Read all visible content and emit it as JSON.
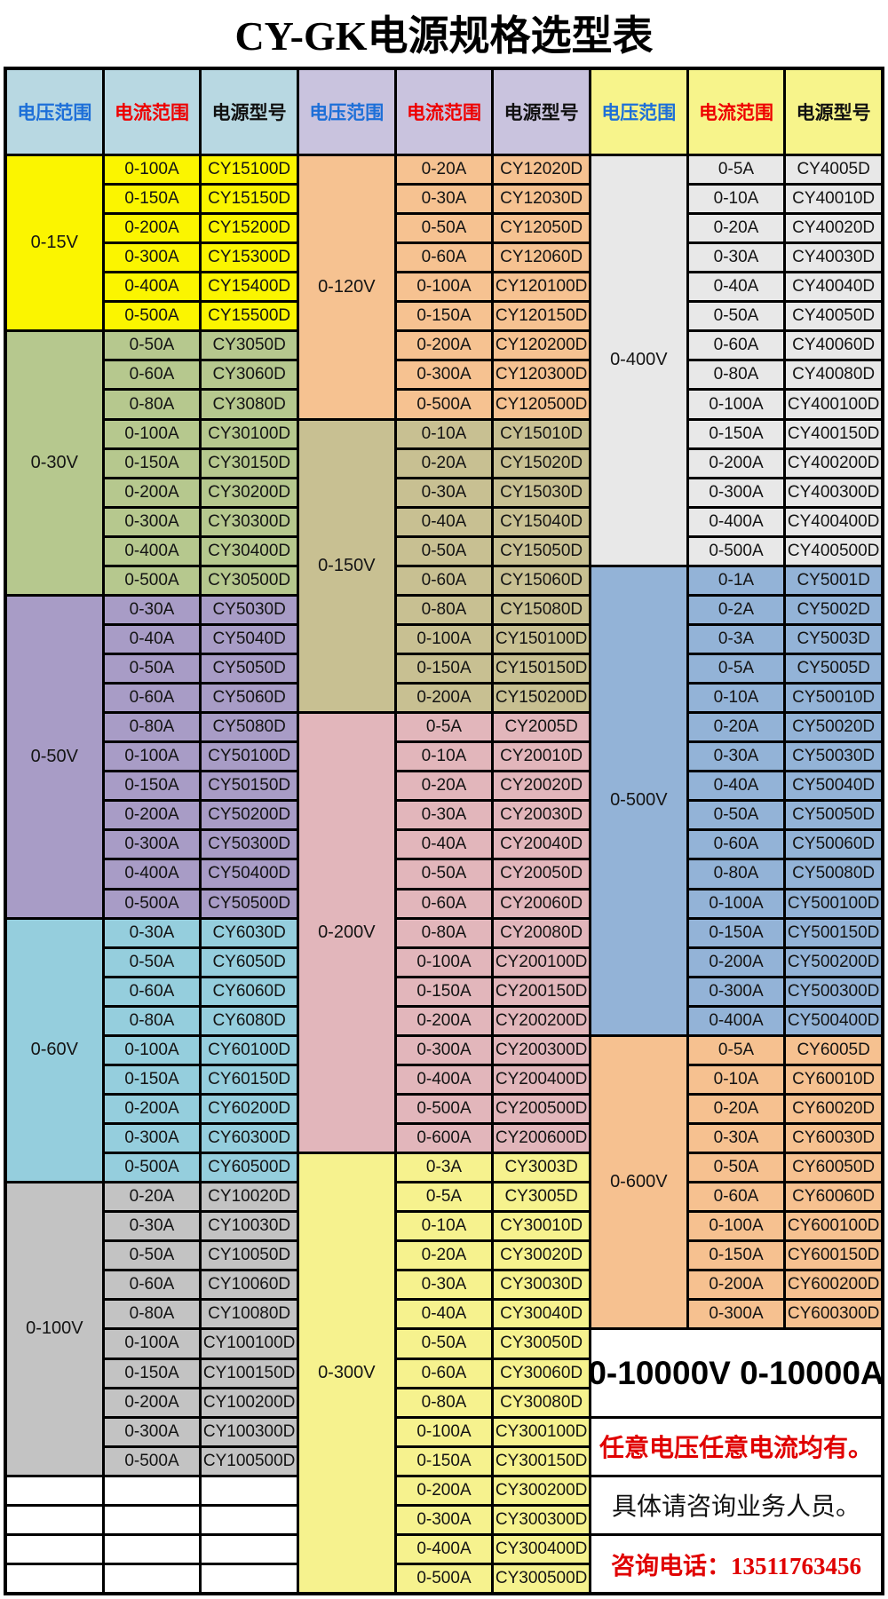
{
  "title": "CY-GK电源规格选型表",
  "columns": {
    "voltage": "电压范围",
    "current": "电流范围",
    "model": "电源型号"
  },
  "header_text_colors": {
    "voltage": "#1d6fd8",
    "current": "#ee0000",
    "model": "#111111"
  },
  "groups": [
    {
      "header_bg": "#b8d8e2",
      "trailing_empty_rows": 4,
      "sections": [
        {
          "voltage": "0-15V",
          "bg": "#fbf500",
          "rows": [
            [
              "0-100A",
              "CY15100D"
            ],
            [
              "0-150A",
              "CY15150D"
            ],
            [
              "0-200A",
              "CY15200D"
            ],
            [
              "0-300A",
              "CY15300D"
            ],
            [
              "0-400A",
              "CY15400D"
            ],
            [
              "0-500A",
              "CY15500D"
            ]
          ]
        },
        {
          "voltage": "0-30V",
          "bg": "#b6c88e",
          "rows": [
            [
              "0-50A",
              "CY3050D"
            ],
            [
              "0-60A",
              "CY3060D"
            ],
            [
              "0-80A",
              "CY3080D"
            ],
            [
              "0-100A",
              "CY30100D"
            ],
            [
              "0-150A",
              "CY30150D"
            ],
            [
              "0-200A",
              "CY30200D"
            ],
            [
              "0-300A",
              "CY30300D"
            ],
            [
              "0-400A",
              "CY30400D"
            ],
            [
              "0-500A",
              "CY30500D"
            ]
          ]
        },
        {
          "voltage": "0-50V",
          "bg": "#a89cc6",
          "rows": [
            [
              "0-30A",
              "CY5030D"
            ],
            [
              "0-40A",
              "CY5040D"
            ],
            [
              "0-50A",
              "CY5050D"
            ],
            [
              "0-60A",
              "CY5060D"
            ],
            [
              "0-80A",
              "CY5080D"
            ],
            [
              "0-100A",
              "CY50100D"
            ],
            [
              "0-150A",
              "CY50150D"
            ],
            [
              "0-200A",
              "CY50200D"
            ],
            [
              "0-300A",
              "CY50300D"
            ],
            [
              "0-400A",
              "CY50400D"
            ],
            [
              "0-500A",
              "CY50500D"
            ]
          ]
        },
        {
          "voltage": "0-60V",
          "bg": "#95cedd",
          "rows": [
            [
              "0-30A",
              "CY6030D"
            ],
            [
              "0-50A",
              "CY6050D"
            ],
            [
              "0-60A",
              "CY6060D"
            ],
            [
              "0-80A",
              "CY6080D"
            ],
            [
              "0-100A",
              "CY60100D"
            ],
            [
              "0-150A",
              "CY60150D"
            ],
            [
              "0-200A",
              "CY60200D"
            ],
            [
              "0-300A",
              "CY60300D"
            ],
            [
              "0-500A",
              "CY60500D"
            ]
          ]
        },
        {
          "voltage": "0-100V",
          "bg": "#c3c3c3",
          "rows": [
            [
              "0-20A",
              "CY10020D"
            ],
            [
              "0-30A",
              "CY10030D"
            ],
            [
              "0-50A",
              "CY10050D"
            ],
            [
              "0-60A",
              "CY10060D"
            ],
            [
              "0-80A",
              "CY10080D"
            ],
            [
              "0-100A",
              "CY100100D"
            ],
            [
              "0-150A",
              "CY100150D"
            ],
            [
              "0-200A",
              "CY100200D"
            ],
            [
              "0-300A",
              "CY100300D"
            ],
            [
              "0-500A",
              "CY100500D"
            ]
          ]
        }
      ]
    },
    {
      "header_bg": "#c9c3de",
      "trailing_empty_rows": 0,
      "sections": [
        {
          "voltage": "0-120V",
          "bg": "#f6c291",
          "rows": [
            [
              "0-20A",
              "CY12020D"
            ],
            [
              "0-30A",
              "CY12030D"
            ],
            [
              "0-50A",
              "CY12050D"
            ],
            [
              "0-60A",
              "CY12060D"
            ],
            [
              "0-100A",
              "CY120100D"
            ],
            [
              "0-150A",
              "CY120150D"
            ],
            [
              "0-200A",
              "CY120200D"
            ],
            [
              "0-300A",
              "CY120300D"
            ],
            [
              "0-500A",
              "CY120500D"
            ]
          ]
        },
        {
          "voltage": "0-150V",
          "bg": "#c8c092",
          "rows": [
            [
              "0-10A",
              "CY15010D"
            ],
            [
              "0-20A",
              "CY15020D"
            ],
            [
              "0-30A",
              "CY15030D"
            ],
            [
              "0-40A",
              "CY15040D"
            ],
            [
              "0-50A",
              "CY15050D"
            ],
            [
              "0-60A",
              "CY15060D"
            ],
            [
              "0-80A",
              "CY15080D"
            ],
            [
              "0-100A",
              "CY150100D"
            ],
            [
              "0-150A",
              "CY150150D"
            ],
            [
              "0-200A",
              "CY150200D"
            ]
          ]
        },
        {
          "voltage": "0-200V",
          "bg": "#e2b6bb",
          "rows": [
            [
              "0-5A",
              "CY2005D"
            ],
            [
              "0-10A",
              "CY20010D"
            ],
            [
              "0-20A",
              "CY20020D"
            ],
            [
              "0-30A",
              "CY20030D"
            ],
            [
              "0-40A",
              "CY20040D"
            ],
            [
              "0-50A",
              "CY20050D"
            ],
            [
              "0-60A",
              "CY20060D"
            ],
            [
              "0-80A",
              "CY20080D"
            ],
            [
              "0-100A",
              "CY200100D"
            ],
            [
              "0-150A",
              "CY200150D"
            ],
            [
              "0-200A",
              "CY200200D"
            ],
            [
              "0-300A",
              "CY200300D"
            ],
            [
              "0-400A",
              "CY200400D"
            ],
            [
              "0-500A",
              "CY200500D"
            ],
            [
              "0-600A",
              "CY200600D"
            ]
          ]
        },
        {
          "voltage": "0-300V",
          "bg": "#f6f28e",
          "rows": [
            [
              "0-3A",
              "CY3003D"
            ],
            [
              "0-5A",
              "CY3005D"
            ],
            [
              "0-10A",
              "CY30010D"
            ],
            [
              "0-20A",
              "CY30020D"
            ],
            [
              "0-30A",
              "CY30030D"
            ],
            [
              "0-40A",
              "CY30040D"
            ],
            [
              "0-50A",
              "CY30050D"
            ],
            [
              "0-60A",
              "CY30060D"
            ],
            [
              "0-80A",
              "CY30080D"
            ],
            [
              "0-100A",
              "CY300100D"
            ],
            [
              "0-150A",
              "CY300150D"
            ],
            [
              "0-200A",
              "CY300200D"
            ],
            [
              "0-300A",
              "CY300300D"
            ],
            [
              "0-400A",
              "CY300400D"
            ],
            [
              "0-500A",
              "CY300500D"
            ]
          ]
        }
      ]
    },
    {
      "header_bg": "#f7f48b",
      "trailing_empty_rows": 0,
      "sections": [
        {
          "voltage": "0-400V",
          "bg": "#e8e8e8",
          "rows": [
            [
              "0-5A",
              "CY4005D"
            ],
            [
              "0-10A",
              "CY40010D"
            ],
            [
              "0-20A",
              "CY40020D"
            ],
            [
              "0-30A",
              "CY40030D"
            ],
            [
              "0-40A",
              "CY40040D"
            ],
            [
              "0-50A",
              "CY40050D"
            ],
            [
              "0-60A",
              "CY40060D"
            ],
            [
              "0-80A",
              "CY40080D"
            ],
            [
              "0-100A",
              "CY400100D"
            ],
            [
              "0-150A",
              "CY400150D"
            ],
            [
              "0-200A",
              "CY400200D"
            ],
            [
              "0-300A",
              "CY400300D"
            ],
            [
              "0-400A",
              "CY400400D"
            ],
            [
              "0-500A",
              "CY400500D"
            ]
          ]
        },
        {
          "voltage": "0-500V",
          "bg": "#93b3d7",
          "rows": [
            [
              "0-1A",
              "CY5001D"
            ],
            [
              "0-2A",
              "CY5002D"
            ],
            [
              "0-3A",
              "CY5003D"
            ],
            [
              "0-5A",
              "CY5005D"
            ],
            [
              "0-10A",
              "CY50010D"
            ],
            [
              "0-20A",
              "CY50020D"
            ],
            [
              "0-30A",
              "CY50030D"
            ],
            [
              "0-40A",
              "CY50040D"
            ],
            [
              "0-50A",
              "CY50050D"
            ],
            [
              "0-60A",
              "CY50060D"
            ],
            [
              "0-80A",
              "CY50080D"
            ],
            [
              "0-100A",
              "CY500100D"
            ],
            [
              "0-150A",
              "CY500150D"
            ],
            [
              "0-200A",
              "CY500200D"
            ],
            [
              "0-300A",
              "CY500300D"
            ],
            [
              "0-400A",
              "CY500400D"
            ]
          ]
        },
        {
          "voltage": "0-600V",
          "bg": "#f6c190",
          "rows": [
            [
              "0-5A",
              "CY6005D"
            ],
            [
              "0-10A",
              "CY60010D"
            ],
            [
              "0-20A",
              "CY60020D"
            ],
            [
              "0-30A",
              "CY60030D"
            ],
            [
              "0-50A",
              "CY60050D"
            ],
            [
              "0-60A",
              "CY60060D"
            ],
            [
              "0-100A",
              "CY600100D"
            ],
            [
              "0-150A",
              "CY600150D"
            ],
            [
              "0-200A",
              "CY600200D"
            ],
            [
              "0-300A",
              "CY600300D"
            ]
          ]
        }
      ],
      "notes": [
        {
          "text": "0-10000V 0-10000A",
          "row_span": 3,
          "style": "note-big",
          "name": "note-full-range"
        },
        {
          "text": "任意电压任意电流均有。",
          "row_span": 2,
          "style": "note-red",
          "name": "note-any-voltage-current"
        },
        {
          "text": "具体请咨询业务人员。",
          "row_span": 2,
          "style": "note-black",
          "name": "note-contact-sales"
        },
        {
          "text": "咨询电话：13511763456",
          "row_span": 2,
          "style": "note-phone",
          "name": "note-phone-number"
        }
      ]
    }
  ]
}
